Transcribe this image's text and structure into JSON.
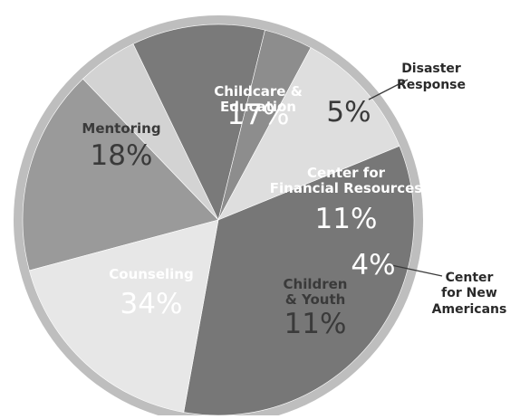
{
  "chart_data": {
    "type": "pie",
    "title": "",
    "slices": [
      {
        "name": "Childcare & Education",
        "lines": [
          "Childcare &",
          "Education"
        ],
        "value": 17,
        "label": "17%",
        "color": "#9a9a9a",
        "text_color": "#ffffff"
      },
      {
        "name": "Disaster Response",
        "lines": [
          "Disaster",
          "Response"
        ],
        "value": 5,
        "label": "5%",
        "color": "#d3d3d3",
        "text_color": "#3a3a3a"
      },
      {
        "name": "Center for Financial Resources",
        "lines": [
          "Center for",
          "Financial Resources"
        ],
        "value": 11,
        "label": "11%",
        "color": "#7a7a7a",
        "text_color": "#ffffff"
      },
      {
        "name": "Center for New Americans",
        "lines": [
          "Center",
          "for New",
          "Americans"
        ],
        "value": 4,
        "label": "4%",
        "color": "#8d8d8d",
        "text_color": "#ffffff"
      },
      {
        "name": "Children & Youth",
        "lines": [
          "Children",
          "& Youth"
        ],
        "value": 11,
        "label": "11%",
        "color": "#dedede",
        "text_color": "#3a3a3a"
      },
      {
        "name": "Counseling",
        "lines": [
          "Counseling"
        ],
        "value": 34,
        "label": "34%",
        "color": "#777777",
        "text_color": "#ffffff"
      },
      {
        "name": "Mentoring",
        "lines": [
          "Mentoring"
        ],
        "value": 18,
        "label": "18%",
        "color": "#e7e7e7",
        "text_color": "#3a3a3a"
      }
    ],
    "rim_color": "#bebebe",
    "legend": "none"
  }
}
